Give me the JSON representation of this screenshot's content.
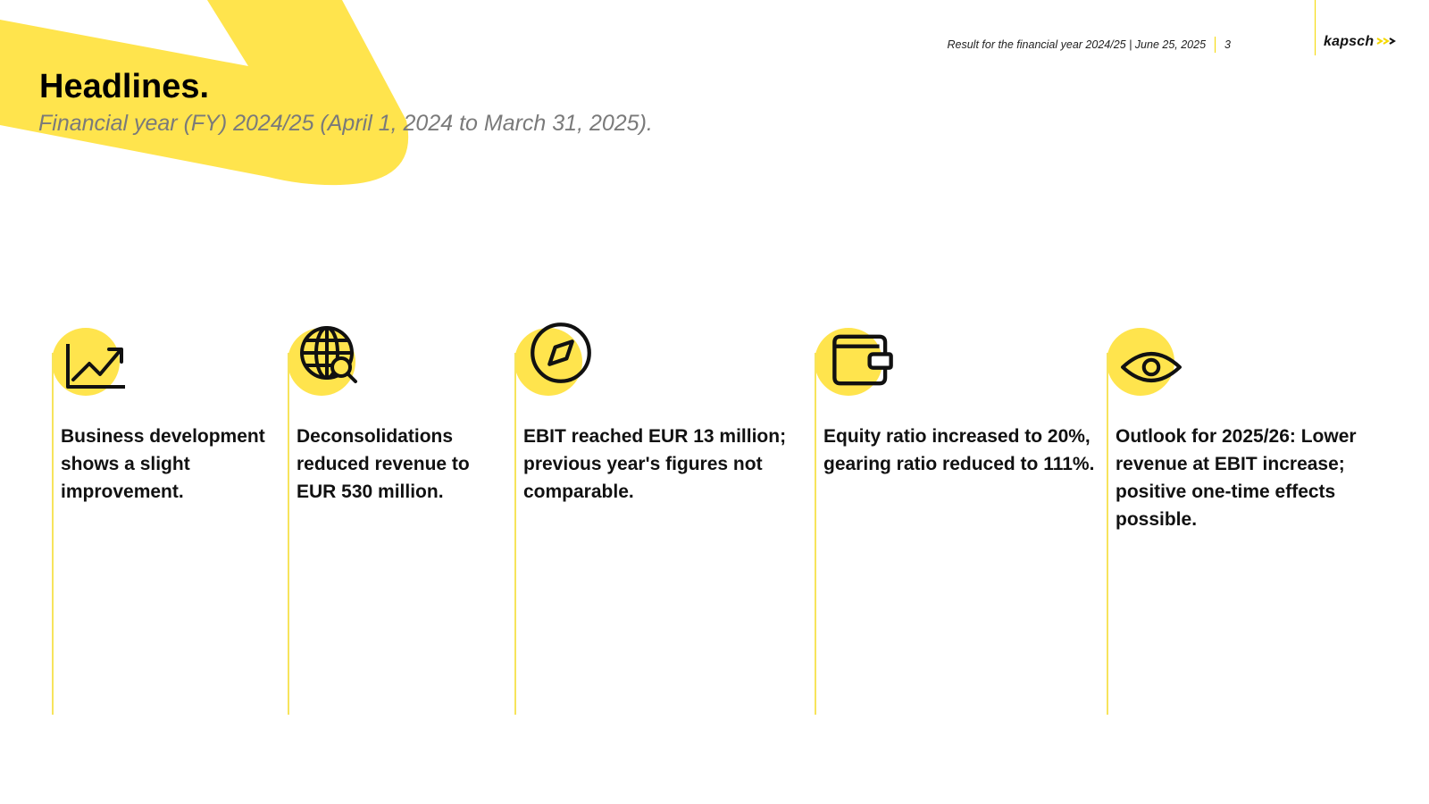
{
  "header": {
    "subtitle_line": "Result for the financial year 2024/25 | June 25, 2025",
    "page_number": "3",
    "logo_text": "kapsch",
    "accent_color": "#ffe44d"
  },
  "title": "Headlines.",
  "subtitle": "Financial year (FY) 2024/25 (April 1, 2024 to March 31, 2025).",
  "cards": [
    {
      "icon": "line-chart-icon",
      "text": "Business development shows a slight improvement."
    },
    {
      "icon": "globe-search-icon",
      "text": "Deconsolidations reduced revenue to EUR 530 million."
    },
    {
      "icon": "compass-icon",
      "text": "EBIT reached EUR 13 million; previous year's figures not comparable."
    },
    {
      "icon": "wallet-icon",
      "text": "Equity ratio increased to 20%, gearing ratio reduced to 111%."
    },
    {
      "icon": "eye-icon",
      "text": "Outlook for 2025/26: Lower revenue at EBIT increase; positive one-time effects possible."
    }
  ]
}
